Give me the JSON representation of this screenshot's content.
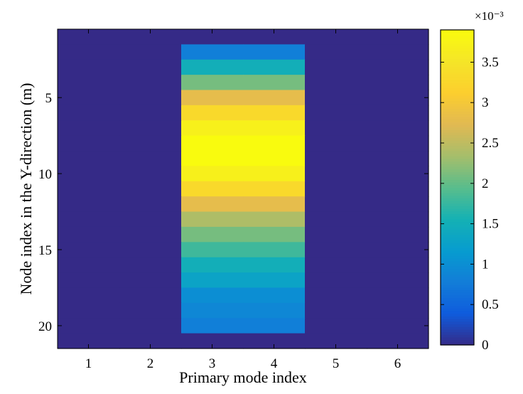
{
  "chart_data": {
    "type": "heatmap",
    "title": "",
    "xlabel": "Primary mode index",
    "ylabel": "Node index in the Y-direction (m)",
    "x_ticks": [
      "1",
      "2",
      "3",
      "4",
      "5",
      "6"
    ],
    "y_ticks": [
      "5",
      "10",
      "15",
      "20"
    ],
    "x_range": [
      0.5,
      6.5
    ],
    "y_range": [
      0.5,
      21.5
    ],
    "y_reversed": true,
    "columns": [
      1,
      2,
      3,
      4,
      5,
      6
    ],
    "rows": [
      1,
      2,
      3,
      4,
      5,
      6,
      7,
      8,
      9,
      10,
      11,
      12,
      13,
      14,
      15,
      16,
      17,
      18,
      19,
      20,
      21
    ],
    "values": [
      [
        0.0,
        0.0,
        0.0,
        0.0,
        0.0,
        0.0
      ],
      [
        0.0,
        0.0,
        0.0008,
        0.0008,
        0.0,
        0.0
      ],
      [
        0.0,
        0.0,
        0.0015,
        0.0015,
        0.0,
        0.0
      ],
      [
        0.0,
        0.0,
        0.0021,
        0.0021,
        0.0,
        0.0
      ],
      [
        0.0,
        0.0,
        0.0028,
        0.0028,
        0.0,
        0.0
      ],
      [
        0.0,
        0.0,
        0.0033,
        0.0033,
        0.0,
        0.0
      ],
      [
        0.0,
        0.0,
        0.0037,
        0.0037,
        0.0,
        0.0
      ],
      [
        0.0,
        0.0,
        0.0039,
        0.0039,
        0.0,
        0.0
      ],
      [
        0.0,
        0.0,
        0.0039,
        0.0039,
        0.0,
        0.0
      ],
      [
        0.0,
        0.0,
        0.0037,
        0.0037,
        0.0,
        0.0
      ],
      [
        0.0,
        0.0,
        0.0033,
        0.0033,
        0.0,
        0.0
      ],
      [
        0.0,
        0.0,
        0.0028,
        0.0028,
        0.0,
        0.0
      ],
      [
        0.0,
        0.0,
        0.0024,
        0.0024,
        0.0,
        0.0
      ],
      [
        0.0,
        0.0,
        0.0021,
        0.0021,
        0.0,
        0.0
      ],
      [
        0.0,
        0.0,
        0.0018,
        0.0018,
        0.0,
        0.0
      ],
      [
        0.0,
        0.0,
        0.0015,
        0.0015,
        0.0,
        0.0
      ],
      [
        0.0,
        0.0,
        0.0013,
        0.0013,
        0.0,
        0.0
      ],
      [
        0.0,
        0.0,
        0.001,
        0.001,
        0.0,
        0.0
      ],
      [
        0.0,
        0.0,
        0.0009,
        0.0009,
        0.0,
        0.0
      ],
      [
        0.0,
        0.0,
        0.0008,
        0.0008,
        0.0,
        0.0
      ],
      [
        0.0,
        0.0,
        0.0,
        0.0,
        0.0,
        0.0
      ]
    ],
    "colorbar": {
      "range": [
        0,
        0.0039
      ],
      "ticks": [
        0,
        0.0005,
        0.001,
        0.0015,
        0.002,
        0.0025,
        0.003,
        0.0035
      ],
      "tick_labels": [
        "0",
        "0.5",
        "1",
        "1.5",
        "2",
        "2.5",
        "3",
        "3.5"
      ],
      "exponent_label": "×10⁻³",
      "colormap": "parula"
    },
    "grid": false,
    "legend": "colorbar-right"
  }
}
